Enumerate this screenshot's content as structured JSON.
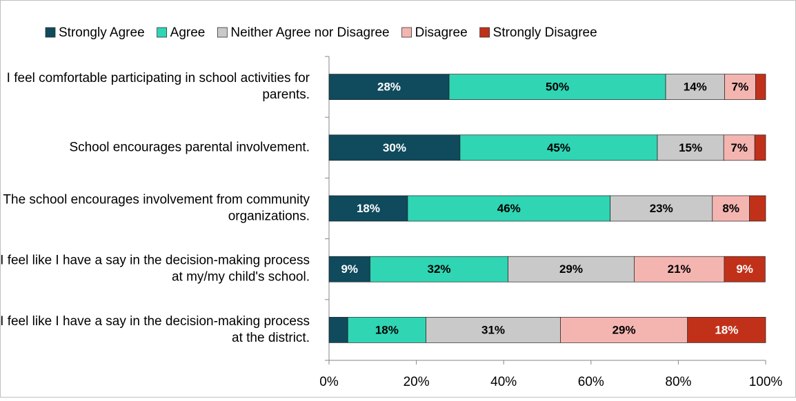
{
  "chart_data": {
    "type": "stacked-bar-horizontal",
    "categories": [
      "I feel comfortable participating in school activities for parents.",
      "School encourages parental involvement.",
      "The school encourages involvement from community organizations.",
      "I feel like I have a say in the decision-making process at my/my child's school.",
      "I feel like I have a say in the decision-making process at the district."
    ],
    "series": [
      {
        "name": "Strongly Agree",
        "color": "#0f4a5d",
        "values": [
          27.5,
          30.0,
          18.0,
          9.4,
          4.3
        ],
        "value_labels": [
          "28%",
          "30%",
          "18%",
          "9%",
          null
        ]
      },
      {
        "name": "Agree",
        "color": "#30d5b4",
        "values": [
          49.6,
          45.2,
          46.4,
          31.6,
          17.9
        ],
        "value_labels": [
          "50%",
          "45%",
          "46%",
          "32%",
          "18%"
        ]
      },
      {
        "name": "Neither Agree nor Disagree",
        "color": "#c9c9c9",
        "values": [
          13.5,
          15.2,
          23.4,
          28.9,
          30.8
        ],
        "value_labels": [
          "14%",
          "15%",
          "23%",
          "29%",
          "31%"
        ]
      },
      {
        "name": "Disagree",
        "color": "#f4b5b1",
        "values": [
          7.1,
          7.1,
          8.5,
          20.6,
          29.1
        ],
        "value_labels": [
          "7%",
          "7%",
          "8%",
          "21%",
          "29%"
        ]
      },
      {
        "name": "Strongly Disagree",
        "color": "#c1311a",
        "values": [
          2.3,
          2.5,
          3.7,
          9.4,
          17.9
        ],
        "value_labels": [
          null,
          null,
          null,
          "9%",
          "18%"
        ]
      }
    ],
    "xlim": [
      0,
      100
    ],
    "xticks": [
      {
        "value": 0,
        "label": "0%"
      },
      {
        "value": 20,
        "label": "20%"
      },
      {
        "value": 40,
        "label": "40%"
      },
      {
        "value": 60,
        "label": "60%"
      },
      {
        "value": 80,
        "label": "80%"
      },
      {
        "value": 100,
        "label": "100%"
      }
    ],
    "legend": "top"
  }
}
